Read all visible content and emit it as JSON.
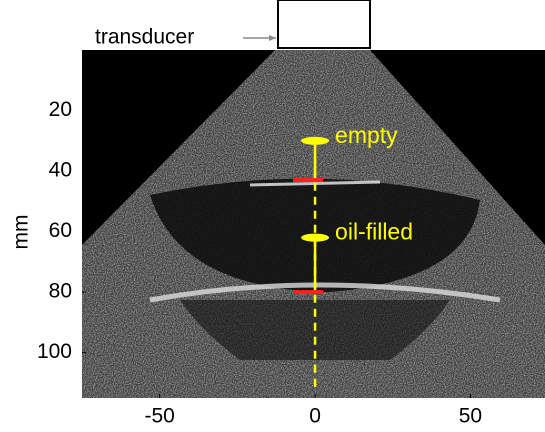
{
  "chart_data": {
    "type": "image",
    "xlim": [
      -75,
      74
    ],
    "xticks": [
      -50,
      0,
      50
    ],
    "ylim": [
      0,
      115
    ],
    "yticks": [
      20,
      40,
      60,
      80,
      100
    ],
    "ylabel": "mm",
    "transducer_label": "transducer",
    "markers": [
      {
        "label": "empty",
        "depth": 30
      },
      {
        "label": "oil-filled",
        "depth": 62
      }
    ],
    "reflections": [
      43,
      80
    ]
  }
}
